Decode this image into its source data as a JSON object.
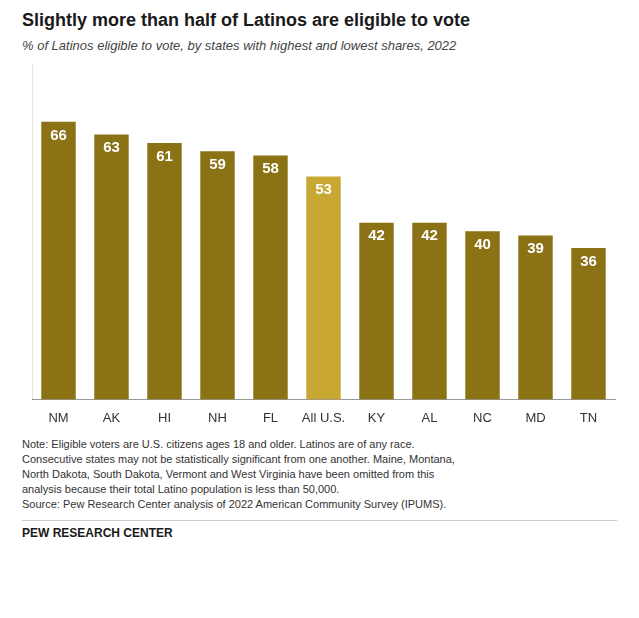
{
  "chart_data": {
    "type": "bar",
    "title": "Slightly more than half of Latinos are eligible to vote",
    "subtitle": "% of Latinos eligible to vote, by states with highest and lowest shares, 2022",
    "categories": [
      "NM",
      "AK",
      "HI",
      "NH",
      "FL",
      "All U.S.",
      "KY",
      "AL",
      "NC",
      "MD",
      "TN"
    ],
    "values": [
      66,
      63,
      61,
      59,
      58,
      53,
      42,
      42,
      40,
      39,
      36
    ],
    "colors": [
      "#8B7214",
      "#8B7214",
      "#8B7214",
      "#8B7214",
      "#8B7214",
      "#C8A832",
      "#8B7214",
      "#8B7214",
      "#8B7214",
      "#8B7214",
      "#8B7214"
    ],
    "ylim": [
      0,
      80
    ],
    "grid": false,
    "data_labels": true,
    "tick_labels": "x",
    "notes": [
      "Note: Eligible voters are U.S. citizens ages 18 and older. Latinos are of any race.",
      "Consecutive states may not be statistically significant from one another. Maine, Montana,",
      "North Dakota, South Dakota, Vermont and West Virginia have been omitted from this",
      "analysis because their total Latino population is less than 50,000.",
      "Source: Pew Research Center analysis of 2022 American Community Survey (IPUMS)."
    ],
    "footer": "PEW RESEARCH CENTER"
  }
}
